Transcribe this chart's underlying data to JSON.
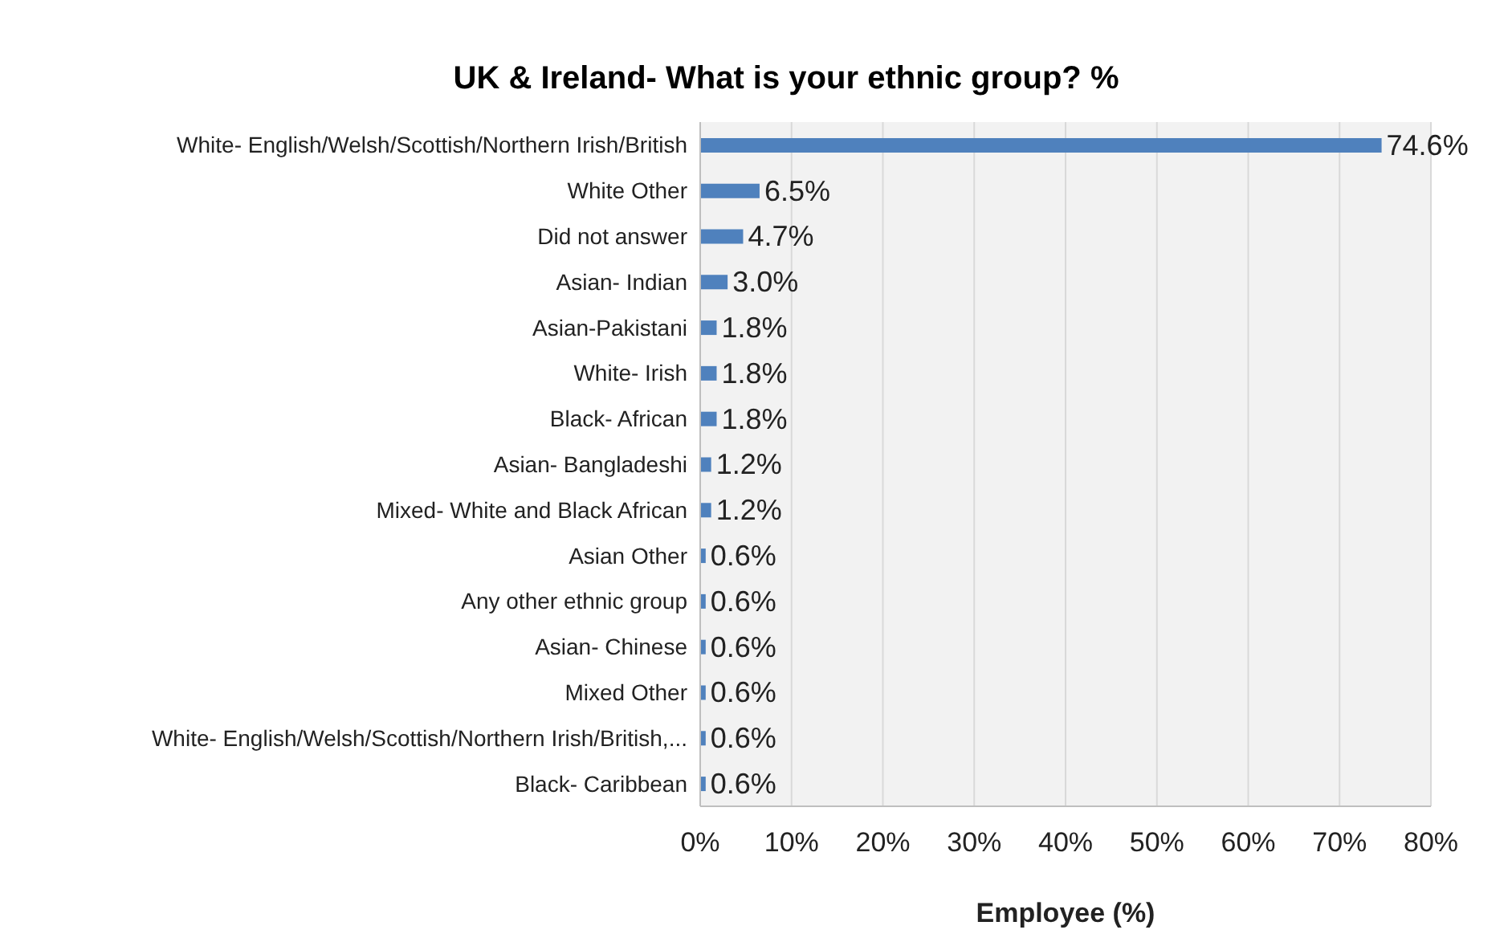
{
  "chart_data": {
    "type": "bar",
    "orientation": "horizontal",
    "title": "UK & Ireland- What is your ethnic group? %",
    "xlabel": "Employee (%)",
    "categories": [
      "White- English/Welsh/Scottish/Northern Irish/British",
      "White Other",
      "Did not answer",
      "Asian- Indian",
      "Asian-Pakistani",
      "White- Irish",
      "Black- African",
      "Asian- Bangladeshi",
      "Mixed- White and Black African",
      "Asian Other",
      "Any other ethnic group",
      "Asian- Chinese",
      "Mixed Other",
      "White-   English/Welsh/Scottish/Northern Irish/British,...",
      "Black- Caribbean"
    ],
    "values": [
      74.6,
      6.5,
      4.7,
      3.0,
      1.8,
      1.8,
      1.8,
      1.2,
      1.2,
      0.6,
      0.6,
      0.6,
      0.6,
      0.6,
      0.6
    ],
    "value_labels": [
      "74.6%",
      "6.5%",
      "4.7%",
      "3.0%",
      "1.8%",
      "1.8%",
      "1.8%",
      "1.2%",
      "1.2%",
      "0.6%",
      "0.6%",
      "0.6%",
      "0.6%",
      "0.6%",
      "0.6%"
    ],
    "color": "#4f81bd",
    "xlim": [
      0,
      80
    ],
    "xticks": [
      {
        "value": 0,
        "label": "0%"
      },
      {
        "value": 10,
        "label": "10%"
      },
      {
        "value": 20,
        "label": "20%"
      },
      {
        "value": 30,
        "label": "30%"
      },
      {
        "value": 40,
        "label": "40%"
      },
      {
        "value": 50,
        "label": "50%"
      },
      {
        "value": 60,
        "label": "60%"
      },
      {
        "value": 70,
        "label": "70%"
      },
      {
        "value": 80,
        "label": "80%"
      }
    ],
    "grid": "x",
    "legend": false
  }
}
